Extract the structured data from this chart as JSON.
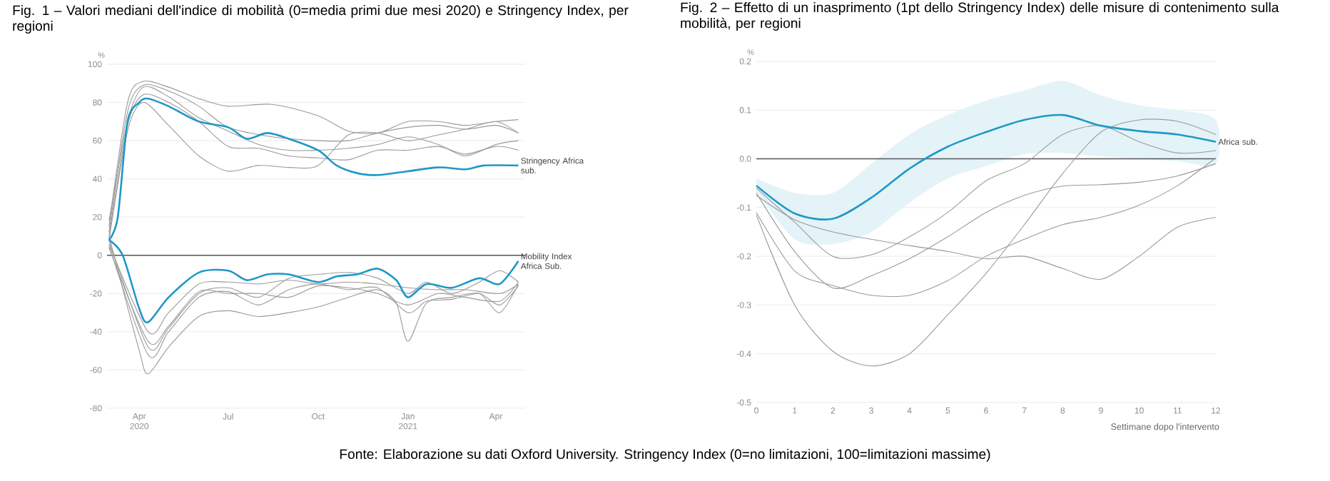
{
  "chart_data": [
    {
      "type": "line",
      "title": "Fig. 1 – Valori mediani dell'indice di mobilità (0=media primi due mesi 2020) e Stringency Index, per regioni",
      "ylabel": "%",
      "xlim": [
        "2020-02-28",
        "2021-05-01"
      ],
      "xticks": [
        {
          "value": "2020-04-01",
          "label": "Apr 2020"
        },
        {
          "value": "2020-07-01",
          "label": "Jul"
        },
        {
          "value": "2020-10-01",
          "label": "Oct"
        },
        {
          "value": "2021-01-01",
          "label": "Jan 2021"
        },
        {
          "value": "2021-04-01",
          "label": "Apr"
        }
      ],
      "ylim": [
        -80,
        100
      ],
      "yticks": [
        -80,
        -60,
        -40,
        -20,
        0,
        20,
        40,
        60,
        80,
        100
      ],
      "grid": "y",
      "ref_lines": [
        {
          "axis": "y",
          "value": 0,
          "color": "#555555"
        }
      ],
      "annotations": [
        "Fonte: Elaborazione su dati Oxford University. Stringency Index (0=no limitazioni, 100=limitazioni massime)"
      ],
      "series": [
        {
          "color": "#9a9a9a",
          "x": [
            "2020-03-01",
            "2020-03-20",
            "2020-04-05",
            "2020-05-01",
            "2020-06-01",
            "2020-07-01",
            "2020-08-15",
            "2020-10-01",
            "2020-11-01",
            "2020-12-01",
            "2021-01-01",
            "2021-02-01",
            "2021-03-01",
            "2021-04-01",
            "2021-04-24"
          ],
          "values": [
            15,
            80,
            91,
            88,
            82,
            78,
            79,
            73,
            65,
            64,
            70,
            70,
            68,
            70,
            71
          ]
        },
        {
          "color": "#9a9a9a",
          "x": [
            "2020-03-01",
            "2020-03-20",
            "2020-04-05",
            "2020-05-01",
            "2020-06-01",
            "2020-07-01",
            "2020-08-15",
            "2020-10-01",
            "2020-11-01",
            "2020-12-01",
            "2021-01-01",
            "2021-02-01",
            "2021-03-01",
            "2021-04-01",
            "2021-04-24"
          ],
          "values": [
            12,
            75,
            89,
            86,
            78,
            67,
            62,
            60,
            60,
            64,
            67,
            68,
            66,
            68,
            64
          ]
        },
        {
          "color": "#9a9a9a",
          "x": [
            "2020-03-01",
            "2020-03-20",
            "2020-04-05",
            "2020-05-01",
            "2020-06-01",
            "2020-07-01",
            "2020-08-01",
            "2020-09-01",
            "2020-10-01",
            "2020-11-01",
            "2020-12-01",
            "2021-01-01",
            "2021-02-01",
            "2021-03-01",
            "2021-04-01",
            "2021-04-24"
          ],
          "values": [
            18,
            70,
            88,
            83,
            72,
            65,
            58,
            55,
            55,
            56,
            58,
            62,
            58,
            52,
            58,
            60
          ]
        },
        {
          "color": "#9a9a9a",
          "x": [
            "2020-03-01",
            "2020-03-20",
            "2020-04-05",
            "2020-05-01",
            "2020-06-01",
            "2020-07-01",
            "2020-08-01",
            "2020-09-01",
            "2020-10-01",
            "2020-11-01",
            "2020-12-01",
            "2021-01-01",
            "2021-02-01",
            "2021-03-01",
            "2021-04-01",
            "2021-04-24"
          ],
          "values": [
            10,
            68,
            84,
            80,
            70,
            57,
            56,
            52,
            51,
            50,
            55,
            55,
            57,
            53,
            57,
            55
          ]
        },
        {
          "color": "#9a9a9a",
          "x": [
            "2020-03-01",
            "2020-03-20",
            "2020-04-05",
            "2020-05-01",
            "2020-06-01",
            "2020-07-01",
            "2020-08-01",
            "2020-09-01",
            "2020-10-01",
            "2020-11-01",
            "2020-12-01",
            "2021-01-01",
            "2021-02-01",
            "2021-03-01",
            "2021-04-01",
            "2021-04-24"
          ],
          "values": [
            8,
            65,
            80,
            68,
            52,
            44,
            47,
            46,
            47,
            63,
            64,
            60,
            63,
            66,
            70,
            64
          ]
        },
        {
          "color": "#9a9a9a",
          "x": [
            "2020-03-01",
            "2020-04-01",
            "2020-04-10",
            "2020-05-01",
            "2020-06-01",
            "2020-07-01",
            "2020-08-01",
            "2020-09-01",
            "2020-10-01",
            "2020-11-01",
            "2020-12-01",
            "2020-12-20",
            "2021-01-01",
            "2021-01-20",
            "2021-02-15",
            "2021-03-15",
            "2021-04-05",
            "2021-04-24"
          ],
          "values": [
            10,
            -50,
            -62,
            -48,
            -32,
            -29,
            -32,
            -30,
            -27,
            -22,
            -18,
            -25,
            -45,
            -25,
            -22,
            -20,
            -30,
            -15
          ]
        },
        {
          "color": "#9a9a9a",
          "x": [
            "2020-03-01",
            "2020-04-10",
            "2020-05-01",
            "2020-06-01",
            "2020-07-01",
            "2020-08-01",
            "2020-09-01",
            "2020-10-01",
            "2020-11-01",
            "2020-12-01",
            "2021-01-01",
            "2021-01-20",
            "2021-02-15",
            "2021-03-15",
            "2021-04-05",
            "2021-04-24"
          ],
          "values": [
            5,
            -52,
            -40,
            -22,
            -19,
            -26,
            -18,
            -15,
            -18,
            -17,
            -30,
            -24,
            -23,
            -20,
            -26,
            -16
          ]
        },
        {
          "color": "#9a9a9a",
          "x": [
            "2020-03-01",
            "2020-04-10",
            "2020-05-01",
            "2020-06-01",
            "2020-07-01",
            "2020-08-01",
            "2020-09-01",
            "2020-10-01",
            "2020-11-01",
            "2020-12-01",
            "2021-01-01",
            "2021-01-20",
            "2021-02-15",
            "2021-03-15",
            "2021-04-05",
            "2021-04-24"
          ],
          "values": [
            8,
            -48,
            -38,
            -20,
            -17,
            -22,
            -12,
            -10,
            -9,
            -12,
            -20,
            -14,
            -20,
            -14,
            -8,
            -14
          ]
        },
        {
          "color": "#9a9a9a",
          "x": [
            "2020-03-01",
            "2020-04-10",
            "2020-05-01",
            "2020-06-01",
            "2020-07-01",
            "2020-08-01",
            "2020-09-01",
            "2020-10-01",
            "2020-11-01",
            "2020-12-01",
            "2021-01-01",
            "2021-02-01",
            "2021-03-01",
            "2021-04-05",
            "2021-04-24"
          ],
          "values": [
            6,
            -40,
            -30,
            -15,
            -14,
            -15,
            -13,
            -15,
            -14,
            -15,
            -17,
            -18,
            -18,
            -20,
            -15
          ]
        },
        {
          "color": "#9a9a9a",
          "x": [
            "2020-03-01",
            "2020-04-10",
            "2020-05-01",
            "2020-06-01",
            "2020-07-01",
            "2020-08-01",
            "2020-09-01",
            "2020-10-01",
            "2020-11-01",
            "2020-12-01",
            "2021-01-01",
            "2021-02-01",
            "2021-03-01",
            "2021-04-05",
            "2021-04-24"
          ],
          "values": [
            4,
            -45,
            -37,
            -19,
            -20,
            -20,
            -22,
            -16,
            -17,
            -20,
            -26,
            -20,
            -22,
            -24,
            -14
          ]
        },
        {
          "name": "Stringency Africa sub.",
          "color": "#1f98c7",
          "x": [
            "2020-03-01",
            "2020-03-10",
            "2020-03-20",
            "2020-04-01",
            "2020-04-10",
            "2020-05-01",
            "2020-06-01",
            "2020-07-01",
            "2020-07-20",
            "2020-08-10",
            "2020-09-01",
            "2020-10-01",
            "2020-10-20",
            "2020-11-10",
            "2020-12-01",
            "2021-01-01",
            "2021-02-01",
            "2021-03-01",
            "2021-03-20",
            "2021-04-24"
          ],
          "values": [
            8,
            20,
            70,
            80,
            82,
            78,
            70,
            67,
            61,
            64,
            61,
            55,
            47,
            43,
            42,
            44,
            46,
            45,
            47,
            47
          ]
        },
        {
          "name": "Mobility Index Africa Sub.",
          "color": "#1f98c7",
          "x": [
            "2020-03-01",
            "2020-03-15",
            "2020-04-01",
            "2020-04-10",
            "2020-05-01",
            "2020-06-01",
            "2020-07-01",
            "2020-07-20",
            "2020-08-10",
            "2020-09-01",
            "2020-10-01",
            "2020-10-20",
            "2020-11-10",
            "2020-12-01",
            "2020-12-20",
            "2021-01-01",
            "2021-01-20",
            "2021-02-15",
            "2021-03-15",
            "2021-04-05",
            "2021-04-24"
          ],
          "values": [
            8,
            0,
            -28,
            -35,
            -22,
            -9,
            -8,
            -13,
            -10,
            -10,
            -14,
            -11,
            -10,
            -7,
            -13,
            -22,
            -15,
            -17,
            -12,
            -15,
            -3
          ]
        }
      ]
    },
    {
      "type": "line",
      "title": "Fig. 2 – Effetto di un inasprimento (1pt dello Stringency Index) delle misure di contenimento sulla mobilità, per regioni",
      "xlabel": "Settimane dopo l'intervento",
      "ylabel": "%",
      "x": [
        0,
        1,
        2,
        3,
        4,
        5,
        6,
        7,
        8,
        9,
        10,
        11,
        12
      ],
      "xlim": [
        0,
        12
      ],
      "xticks": [
        0,
        1,
        2,
        3,
        4,
        5,
        6,
        7,
        8,
        9,
        10,
        11,
        12
      ],
      "ylim": [
        -0.5,
        0.2
      ],
      "yticks": [
        -0.5,
        -0.4,
        -0.3,
        -0.2,
        -0.1,
        {
          "value": 0,
          "label": "0.0"
        },
        0.1,
        0.2
      ],
      "grid": "y",
      "ref_lines": [
        {
          "axis": "y",
          "value": 0,
          "color": "#555555"
        }
      ],
      "series": [
        {
          "color": "#9a9a9a",
          "values": [
            -0.06,
            -0.13,
            -0.2,
            -0.197,
            -0.16,
            -0.11,
            -0.045,
            -0.01,
            0.05,
            0.068,
            0.035,
            0.012,
            0.017
          ]
        },
        {
          "color": "#9a9a9a",
          "values": [
            -0.075,
            -0.125,
            -0.15,
            -0.165,
            -0.178,
            -0.19,
            -0.205,
            -0.2,
            -0.225,
            -0.247,
            -0.2,
            -0.14,
            -0.12
          ]
        },
        {
          "color": "#9a9a9a",
          "values": [
            -0.07,
            -0.19,
            -0.265,
            -0.24,
            -0.205,
            -0.16,
            -0.11,
            -0.075,
            -0.056,
            -0.053,
            -0.048,
            -0.035,
            -0.01
          ]
        },
        {
          "color": "#9a9a9a",
          "values": [
            -0.11,
            -0.23,
            -0.26,
            -0.28,
            -0.28,
            -0.25,
            -0.2,
            -0.165,
            -0.135,
            -0.12,
            -0.095,
            -0.055,
            0.002
          ]
        },
        {
          "color": "#9a9a9a",
          "values": [
            -0.115,
            -0.3,
            -0.395,
            -0.425,
            -0.4,
            -0.32,
            -0.235,
            -0.135,
            -0.03,
            0.055,
            0.08,
            0.077,
            0.05
          ]
        },
        {
          "name": "Africa sub.",
          "color": "#1f98c7",
          "values": [
            -0.055,
            -0.112,
            -0.123,
            -0.08,
            -0.02,
            0.025,
            0.055,
            0.08,
            0.09,
            0.068,
            0.057,
            0.05,
            0.035
          ],
          "lower": [
            -0.065,
            -0.165,
            -0.175,
            -0.15,
            -0.09,
            -0.04,
            -0.015,
            0.01,
            0.012,
            0.005,
            0.0,
            -0.005,
            -0.01
          ],
          "upper": [
            -0.04,
            -0.07,
            -0.07,
            -0.01,
            0.05,
            0.09,
            0.12,
            0.14,
            0.16,
            0.13,
            0.11,
            0.1,
            0.08
          ]
        }
      ]
    }
  ]
}
